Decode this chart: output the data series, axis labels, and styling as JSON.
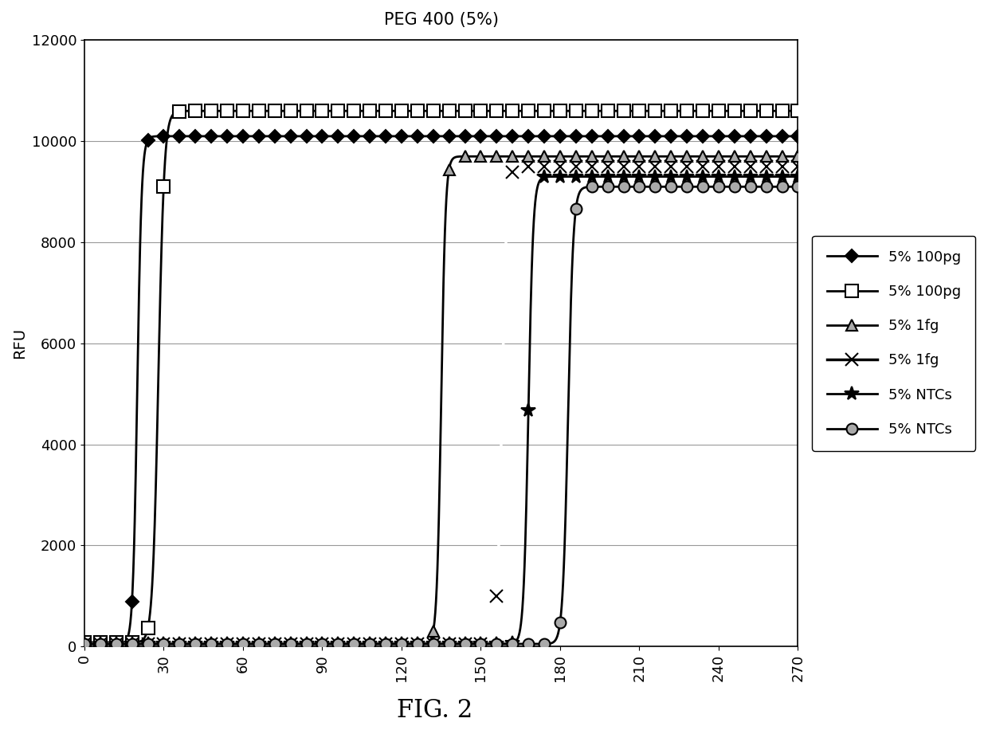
{
  "title": "PEG 400 (5%)",
  "xlabel": "",
  "ylabel": "RFU",
  "fig_label": "FIG. 2",
  "xlim": [
    0,
    270
  ],
  "ylim": [
    0,
    12000
  ],
  "xticks": [
    0,
    30,
    60,
    90,
    120,
    150,
    180,
    210,
    240,
    270
  ],
  "yticks": [
    0,
    2000,
    4000,
    6000,
    8000,
    10000,
    12000
  ],
  "series": [
    {
      "label": "5% 100pg",
      "color": "#000000",
      "linewidth": 2.0,
      "marker": "D",
      "markersize": 8,
      "markerfacecolor": "#000000",
      "markeredgecolor": "#000000",
      "marker_interval": 6,
      "midpoint": 20,
      "steepness": 1.2,
      "plateau": 10100,
      "baseline": 50
    },
    {
      "label": "5% 100pg",
      "color": "#000000",
      "linewidth": 2.0,
      "marker": "s",
      "markersize": 11,
      "markerfacecolor": "#ffffff",
      "markeredgecolor": "#000000",
      "marker_interval": 6,
      "midpoint": 28,
      "steepness": 0.9,
      "plateau": 10600,
      "baseline": 80
    },
    {
      "label": "5% 1fg",
      "color": "#000000",
      "linewidth": 2.0,
      "marker": "^",
      "markersize": 10,
      "markerfacecolor": "#aaaaaa",
      "markeredgecolor": "#000000",
      "marker_interval": 6,
      "midpoint": 135,
      "steepness": 1.2,
      "plateau": 9700,
      "baseline": 50
    },
    {
      "label": "5% 1fg",
      "color": "#ffffff",
      "linewidth": 2.5,
      "marker": "x",
      "markersize": 11,
      "markerfacecolor": "#000000",
      "markeredgecolor": "#000000",
      "marker_interval": 6,
      "midpoint": 158,
      "steepness": 1.1,
      "plateau": 9500,
      "baseline": 50
    },
    {
      "label": "5% NTCs",
      "color": "#000000",
      "linewidth": 2.0,
      "marker": "*",
      "markersize": 13,
      "markerfacecolor": "#000000",
      "markeredgecolor": "#000000",
      "marker_interval": 6,
      "midpoint": 168,
      "steepness": 1.1,
      "plateau": 9300,
      "baseline": 50
    },
    {
      "label": "5% NTCs",
      "color": "#000000",
      "linewidth": 2.0,
      "marker": "o",
      "markersize": 10,
      "markerfacecolor": "#aaaaaa",
      "markeredgecolor": "#000000",
      "marker_interval": 6,
      "midpoint": 183,
      "steepness": 1.0,
      "plateau": 9100,
      "baseline": 50
    }
  ],
  "background_color": "#ffffff",
  "title_fontsize": 15,
  "axis_fontsize": 14,
  "tick_fontsize": 13,
  "legend_fontsize": 13
}
